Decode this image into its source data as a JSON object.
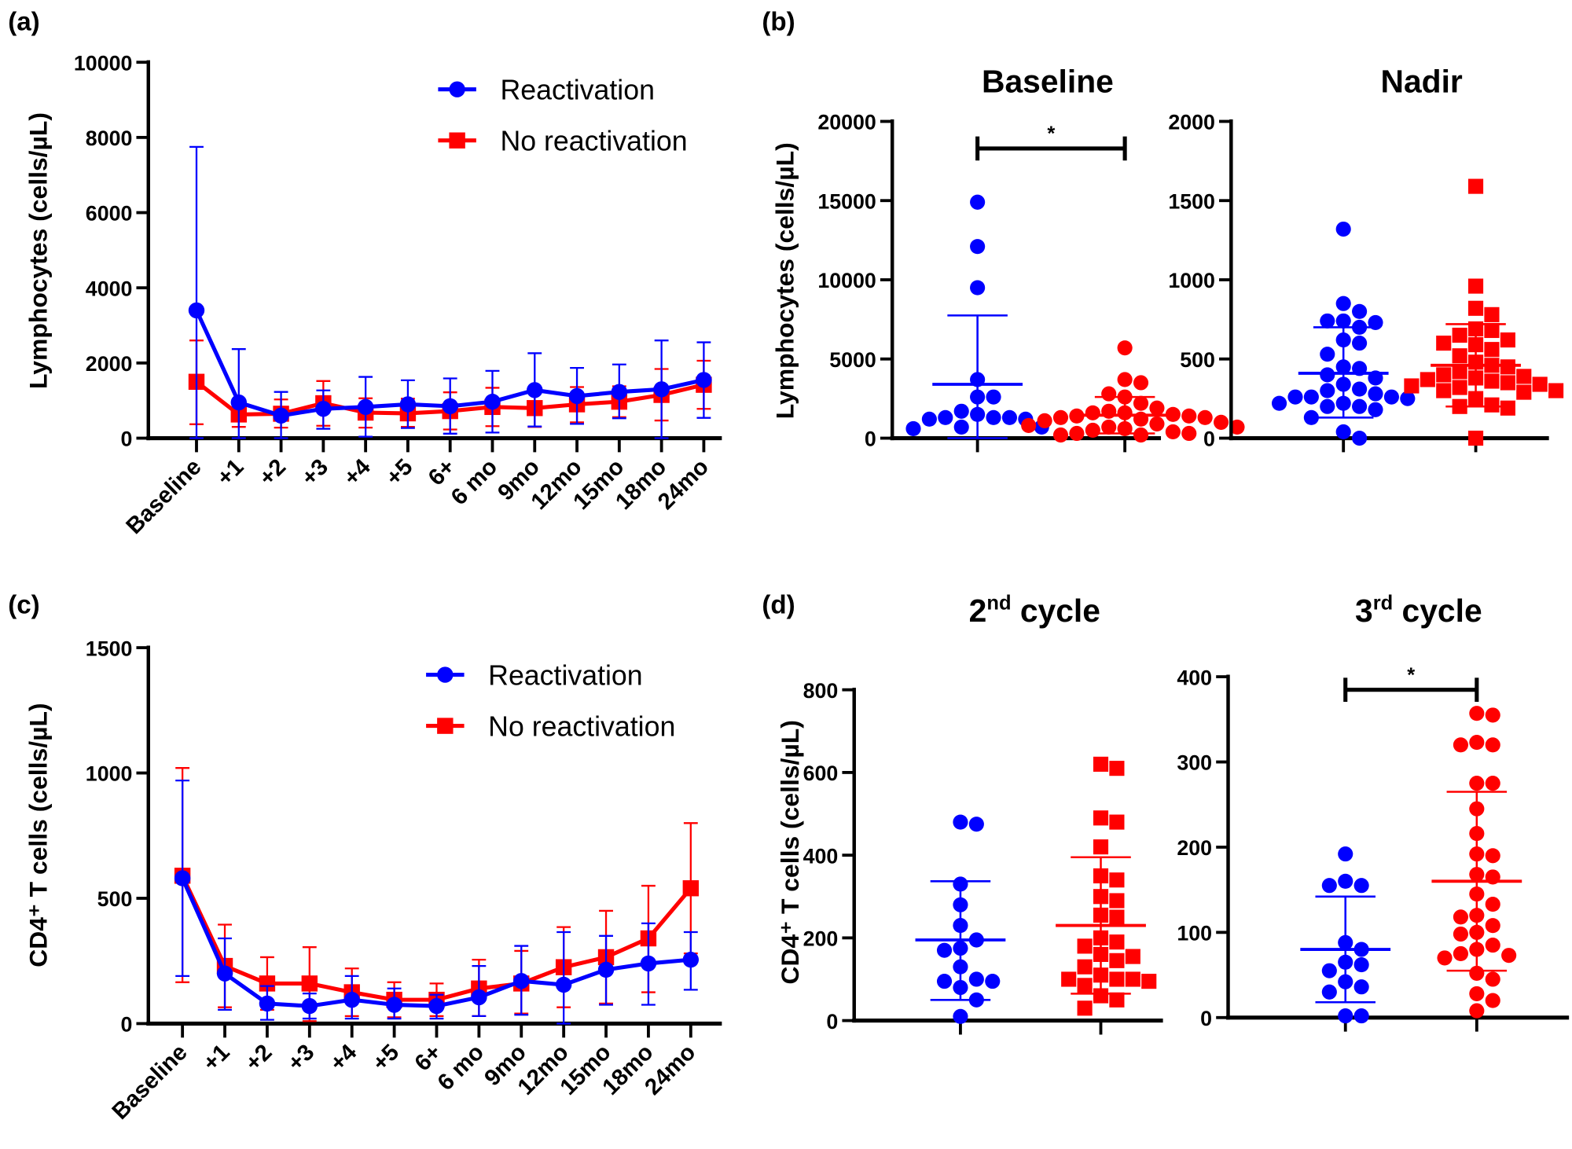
{
  "colors": {
    "reactivation": "#0000ff",
    "no_reactivation": "#ff0000",
    "axis": "#000000"
  },
  "chart_data": [
    {
      "id": "a",
      "panel_label": "(a)",
      "type": "line",
      "ylabel": "Lymphocytes (cells/µL)",
      "ylim": [
        0,
        10000
      ],
      "yticks": [
        0,
        2000,
        4000,
        6000,
        8000,
        10000
      ],
      "categories": [
        "Baseline",
        "+1",
        "+2",
        "+3",
        "+4",
        "+5",
        "6+",
        "6 mo",
        "9mo",
        "12mo",
        "15mo",
        "18mo",
        "24mo"
      ],
      "legend": "top-right",
      "series": [
        {
          "name": "Reactivation",
          "marker": "circle",
          "values": [
            3400,
            950,
            600,
            780,
            830,
            900,
            850,
            970,
            1280,
            1120,
            1230,
            1300,
            1550
          ],
          "err_low": [
            0,
            0,
            0,
            250,
            40,
            270,
            120,
            150,
            310,
            380,
            530,
            0,
            540
          ],
          "err_high": [
            7750,
            2370,
            1230,
            1270,
            1630,
            1540,
            1590,
            1790,
            2260,
            1870,
            1960,
            2600,
            2550
          ]
        },
        {
          "name": "No reactivation",
          "marker": "square",
          "values": [
            1500,
            630,
            650,
            930,
            680,
            660,
            720,
            830,
            800,
            900,
            970,
            1150,
            1420
          ],
          "err_low": [
            370,
            300,
            280,
            330,
            280,
            300,
            230,
            320,
            300,
            420,
            560,
            470,
            780
          ],
          "err_high": [
            2600,
            960,
            1030,
            1520,
            1060,
            1050,
            1220,
            1340,
            1300,
            1360,
            1380,
            1840,
            2060
          ]
        }
      ]
    },
    {
      "id": "b1",
      "panel_label": "(b)",
      "type": "scatter",
      "title": "Baseline",
      "ylabel": "Lymphocytes (cells/µL)",
      "ylim": [
        0,
        20000
      ],
      "yticks": [
        0,
        5000,
        10000,
        15000,
        20000
      ],
      "significance": "*",
      "groups": [
        {
          "marker": "circle",
          "color": "reactivation",
          "mean": 3400,
          "sd_low": 0,
          "sd_high": 7750,
          "values": [
            14900,
            12100,
            9500,
            3700,
            2600,
            2600,
            1700,
            1500,
            1300,
            1300,
            1300,
            1200,
            1200,
            700,
            700,
            600
          ]
        },
        {
          "marker": "circle",
          "color": "no_reactivation",
          "mean": 1450,
          "sd_low": 300,
          "sd_high": 2600,
          "values": [
            5700,
            3700,
            3500,
            2800,
            2600,
            2200,
            1900,
            1700,
            1600,
            1600,
            1500,
            1400,
            1400,
            1300,
            1300,
            1200,
            1100,
            1000,
            900,
            800,
            700,
            700,
            600,
            500,
            400,
            300,
            300,
            200,
            200
          ]
        }
      ]
    },
    {
      "id": "b2",
      "type": "scatter",
      "title": "Nadir",
      "ylim": [
        0,
        2000
      ],
      "yticks": [
        0,
        500,
        1000,
        1500,
        2000
      ],
      "groups": [
        {
          "marker": "circle",
          "color": "reactivation",
          "mean": 410,
          "sd_low": 130,
          "sd_high": 700,
          "values": [
            1320,
            850,
            800,
            740,
            740,
            730,
            700,
            620,
            600,
            530,
            450,
            440,
            400,
            380,
            340,
            310,
            300,
            280,
            260,
            260,
            260,
            250,
            220,
            220,
            200,
            200,
            180,
            130,
            40,
            0
          ]
        },
        {
          "marker": "square",
          "color": "no_reactivation",
          "mean": 460,
          "sd_low": 200,
          "sd_high": 720,
          "values": [
            1590,
            960,
            820,
            780,
            690,
            680,
            650,
            620,
            600,
            590,
            560,
            520,
            480,
            460,
            450,
            420,
            400,
            390,
            380,
            370,
            360,
            350,
            340,
            330,
            320,
            300,
            300,
            290,
            250,
            210,
            200,
            190,
            0
          ]
        }
      ]
    },
    {
      "id": "c",
      "panel_label": "(c)",
      "type": "line",
      "ylabel": "CD4⁺ T cells (cells/µL)",
      "ylim": [
        0,
        1500
      ],
      "yticks": [
        0,
        500,
        1000,
        1500
      ],
      "categories": [
        "Baseline",
        "+1",
        "+2",
        "+3",
        "+4",
        "+5",
        "6+",
        "6 mo",
        "9mo",
        "12mo",
        "15mo",
        "18mo",
        "24mo"
      ],
      "legend": "top-right",
      "series": [
        {
          "name": "Reactivation",
          "marker": "circle",
          "values": [
            580,
            200,
            80,
            70,
            95,
            75,
            70,
            105,
            170,
            155,
            215,
            240,
            255
          ],
          "err_low": [
            190,
            55,
            15,
            20,
            20,
            20,
            20,
            30,
            35,
            0,
            75,
            75,
            135
          ],
          "err_high": [
            970,
            340,
            150,
            120,
            190,
            140,
            115,
            230,
            310,
            365,
            350,
            400,
            365
          ]
        },
        {
          "name": "No reactivation",
          "marker": "square",
          "values": [
            590,
            230,
            160,
            160,
            125,
            95,
            95,
            140,
            160,
            225,
            265,
            340,
            540
          ],
          "err_low": [
            165,
            65,
            55,
            10,
            30,
            25,
            30,
            30,
            40,
            65,
            80,
            125,
            280
          ],
          "err_high": [
            1020,
            395,
            265,
            305,
            220,
            165,
            160,
            255,
            290,
            385,
            450,
            550,
            800
          ]
        }
      ]
    },
    {
      "id": "d1",
      "panel_label": "(d)",
      "type": "scatter",
      "title": "2nd cycle",
      "title_base": "2",
      "title_sup": "nd",
      "title_rest": " cycle",
      "ylabel": "CD4⁺ T cells (cells/µL)",
      "ylim": [
        0,
        800
      ],
      "yticks": [
        0,
        200,
        400,
        600,
        800
      ],
      "groups": [
        {
          "marker": "circle",
          "color": "reactivation",
          "mean": 195,
          "sd_low": 50,
          "sd_high": 337,
          "values": [
            480,
            475,
            330,
            280,
            230,
            195,
            175,
            170,
            130,
            100,
            95,
            95,
            80,
            50,
            10
          ]
        },
        {
          "marker": "square",
          "color": "no_reactivation",
          "mean": 230,
          "sd_low": 65,
          "sd_high": 395,
          "values": [
            620,
            610,
            490,
            480,
            420,
            350,
            340,
            300,
            290,
            255,
            250,
            200,
            190,
            180,
            160,
            155,
            145,
            130,
            110,
            100,
            100,
            100,
            95,
            85,
            60,
            50,
            30
          ]
        }
      ]
    },
    {
      "id": "d2",
      "type": "scatter",
      "title": "3rd cycle",
      "title_base": "3",
      "title_sup": "rd",
      "title_rest": " cycle",
      "ylim": [
        0,
        400
      ],
      "yticks": [
        0,
        100,
        200,
        300,
        400
      ],
      "significance": "*",
      "groups": [
        {
          "marker": "circle",
          "color": "reactivation",
          "mean": 80,
          "sd_low": 18,
          "sd_high": 142,
          "values": [
            192,
            160,
            155,
            155,
            88,
            80,
            65,
            62,
            55,
            42,
            36,
            30,
            2,
            2
          ]
        },
        {
          "marker": "circle",
          "color": "no_reactivation",
          "mean": 160,
          "sd_low": 55,
          "sd_high": 265,
          "values": [
            357,
            355,
            323,
            320,
            320,
            275,
            275,
            245,
            216,
            192,
            190,
            168,
            165,
            145,
            133,
            120,
            118,
            108,
            100,
            98,
            85,
            80,
            75,
            73,
            70,
            52,
            45,
            28,
            20,
            8
          ]
        }
      ]
    }
  ]
}
